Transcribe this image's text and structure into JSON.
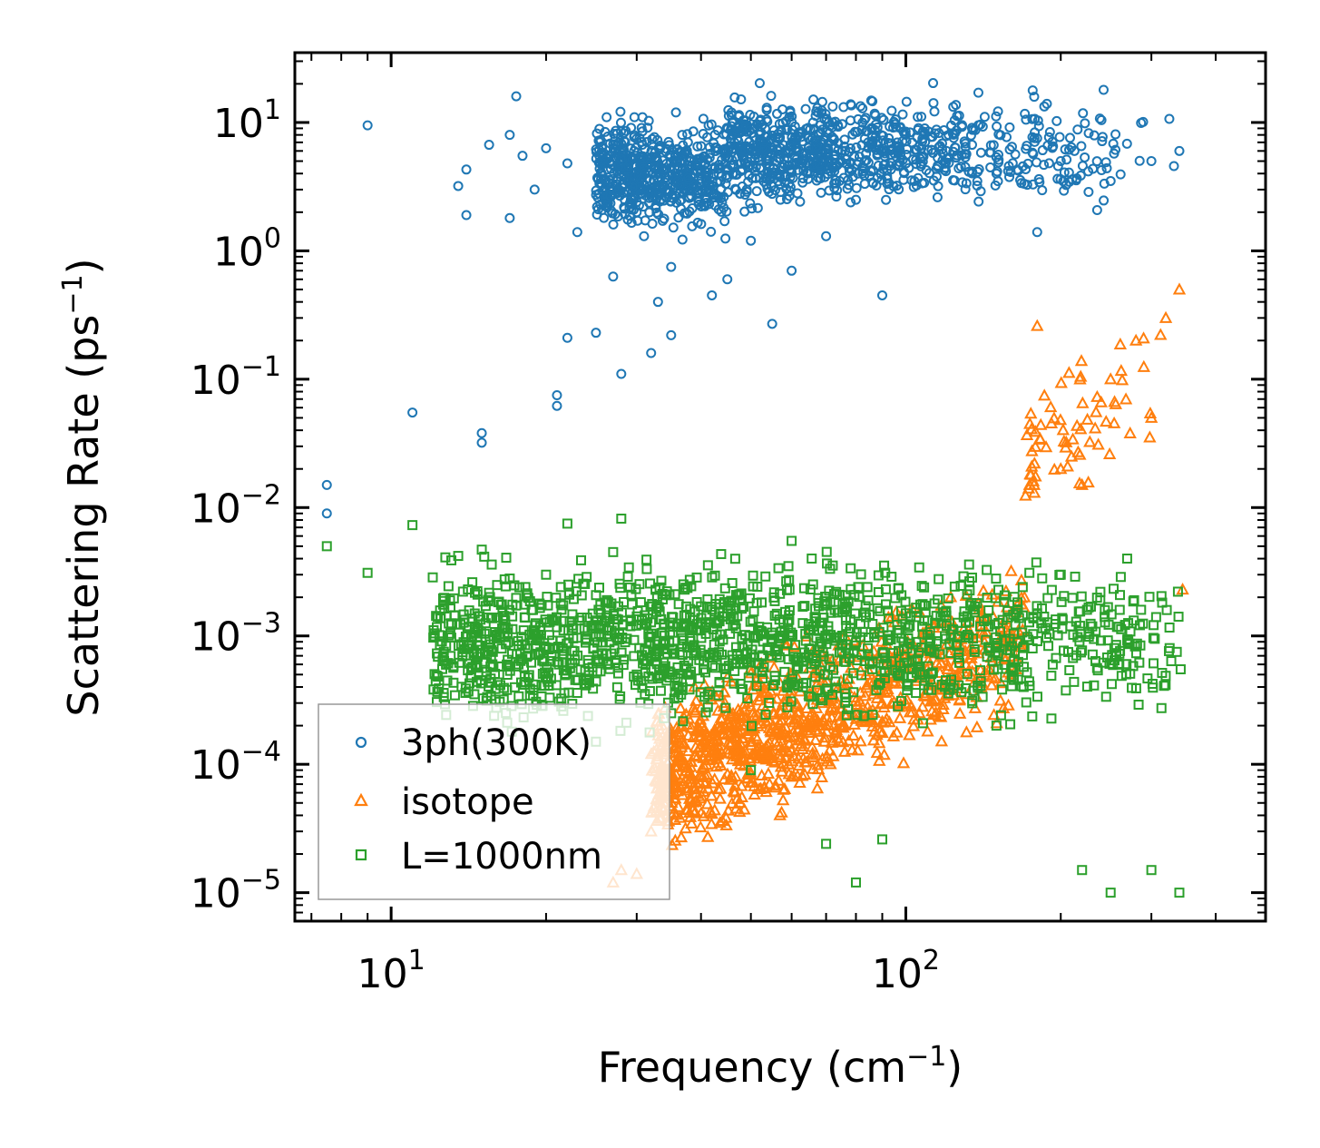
{
  "chart_data": {
    "type": "scatter",
    "xscale": "log",
    "yscale": "log",
    "xlim": [
      6.5,
      500
    ],
    "ylim": [
      6e-06,
      35
    ],
    "xlabel": "Frequency (cm",
    "xlabel_sup": "−1",
    "xlabel_end": ")",
    "ylabel": "Scattering Rate (ps",
    "ylabel_sup": "−1",
    "ylabel_end": ")",
    "xticks": [
      {
        "base": "10",
        "exp": "1",
        "value": 10
      },
      {
        "base": "10",
        "exp": "2",
        "value": 100
      }
    ],
    "yticks": [
      {
        "base": "10",
        "exp": "1",
        "value": 10
      },
      {
        "base": "10",
        "exp": "0",
        "value": 1
      },
      {
        "base": "10",
        "exp": "−1",
        "value": 0.1
      },
      {
        "base": "10",
        "exp": "−2",
        "value": 0.01
      },
      {
        "base": "10",
        "exp": "−3",
        "value": 0.001
      },
      {
        "base": "10",
        "exp": "−4",
        "value": 0.0001
      },
      {
        "base": "10",
        "exp": "−5",
        "value": 1e-05
      }
    ],
    "legend_position": "lower-left",
    "series": [
      {
        "name": "3ph(300K)",
        "marker": "circle",
        "color": "#1f77b4",
        "points": [
          [
            7.5,
            0.015
          ],
          [
            7.5,
            0.009
          ],
          [
            9,
            9.5
          ],
          [
            11,
            0.055
          ],
          [
            13.5,
            3.2
          ],
          [
            14,
            1.9
          ],
          [
            14,
            4.3
          ],
          [
            15,
            0.038
          ],
          [
            15,
            0.032
          ],
          [
            15.5,
            6.7
          ],
          [
            17,
            8
          ],
          [
            17,
            1.8
          ],
          [
            17.5,
            16
          ],
          [
            18,
            5.5
          ],
          [
            19,
            3
          ],
          [
            20,
            6.3
          ],
          [
            21,
            0.075
          ],
          [
            21,
            0.062
          ],
          [
            22,
            0.21
          ],
          [
            22,
            4.8
          ],
          [
            23,
            1.4
          ],
          [
            25,
            0.23
          ],
          [
            26,
            3.5
          ],
          [
            27,
            0.63
          ],
          [
            28,
            0.11
          ],
          [
            30,
            2
          ],
          [
            31,
            1.3
          ],
          [
            32,
            0.16
          ],
          [
            33,
            0.4
          ],
          [
            35,
            0.22
          ],
          [
            35,
            0.75
          ],
          [
            38,
            5
          ],
          [
            42,
            0.45
          ],
          [
            45,
            0.6
          ],
          [
            50,
            1.2
          ],
          [
            55,
            0.27
          ],
          [
            60,
            0.7
          ],
          [
            70,
            1.3
          ],
          [
            80,
            2.5
          ],
          [
            90,
            0.45
          ],
          [
            100,
            8
          ],
          [
            120,
            6
          ],
          [
            150,
            4
          ],
          [
            180,
            1.4
          ],
          [
            200,
            5
          ],
          [
            250,
            3.5
          ],
          [
            300,
            5
          ],
          [
            340,
            6
          ]
        ],
        "band": {
          "x_from": 25,
          "x_to": 345,
          "y_center": 6,
          "y_spread": 2.2
        }
      },
      {
        "name": "isotope",
        "marker": "triangle",
        "color": "#ff7f0e",
        "points": [
          [
            27,
            1.2e-05
          ],
          [
            28,
            1.5e-05
          ],
          [
            30,
            1.4e-05
          ],
          [
            32,
            3e-05
          ],
          [
            35,
            4.5e-05
          ],
          [
            40,
            8e-05
          ],
          [
            45,
            0.00013
          ],
          [
            50,
            0.00015
          ],
          [
            55,
            0.00012
          ],
          [
            60,
            8e-05
          ],
          [
            70,
            0.0002
          ],
          [
            80,
            0.00025
          ],
          [
            90,
            0.0003
          ],
          [
            100,
            0.0003
          ],
          [
            120,
            0.00035
          ],
          [
            140,
            0.0004
          ],
          [
            160,
            0.0005
          ],
          [
            170,
            0.002
          ],
          [
            175,
            0.018
          ],
          [
            180,
            0.26
          ],
          [
            200,
            0.02
          ],
          [
            220,
            0.015
          ],
          [
            250,
            0.1
          ],
          [
            280,
            0.2
          ],
          [
            300,
            0.05
          ],
          [
            320,
            0.3
          ],
          [
            340,
            0.5
          ],
          [
            345,
            0.0023
          ]
        ],
        "band": {
          "x_from": 32,
          "x_to": 345,
          "y_center": 0.00025,
          "y_spread": 3
        }
      },
      {
        "name": "L=1000nm",
        "marker": "square",
        "color": "#2ca02c",
        "points": [
          [
            7.5,
            0.005
          ],
          [
            9,
            0.0031
          ],
          [
            11,
            0.0073
          ],
          [
            13.5,
            0.0042
          ],
          [
            15,
            0.0047
          ],
          [
            17,
            0.0028
          ],
          [
            20,
            0.003
          ],
          [
            22,
            0.0075
          ],
          [
            23,
            0.00036
          ],
          [
            25,
            0.00015
          ],
          [
            27,
            0.0045
          ],
          [
            28,
            0.0082
          ],
          [
            30,
            0.0005
          ],
          [
            35,
            0.00025
          ],
          [
            40,
            0.0017
          ],
          [
            45,
            0.0015
          ],
          [
            50,
            9e-05
          ],
          [
            55,
            0.0009
          ],
          [
            60,
            0.0055
          ],
          [
            70,
            2.4e-05
          ],
          [
            80,
            1.2e-05
          ],
          [
            90,
            2.6e-05
          ],
          [
            100,
            0.0015
          ],
          [
            120,
            0.0012
          ],
          [
            150,
            0.0002
          ],
          [
            180,
            0.0015
          ],
          [
            200,
            0.003
          ],
          [
            220,
            1.5e-05
          ],
          [
            250,
            1e-05
          ],
          [
            300,
            1.5e-05
          ],
          [
            340,
            1e-05
          ]
        ],
        "band": {
          "x_from": 12,
          "x_to": 345,
          "y_center": 0.0009,
          "y_spread": 3.2
        }
      }
    ]
  }
}
